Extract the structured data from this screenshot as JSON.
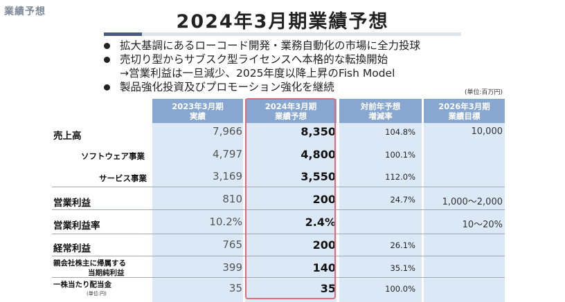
{
  "section_label": "業績予想",
  "title": "2024年3月期業績予想",
  "bullets": [
    "拡大基調にあるローコード開発・業務自動化の市場に全力投球",
    "売切り型からサブスク型ライセンスへ本格的な転換開始",
    "製品強化投資及びプロモーション強化を継続"
  ],
  "bullet_sub": "→営業利益は一旦減少、2025年度以降上昇のFish Model",
  "unit": "(単位:百万円)",
  "headers": {
    "col1": [
      "2023年3月期",
      "実績"
    ],
    "col2": [
      "2024年3月期",
      "業績予想"
    ],
    "col3": [
      "対前年予想",
      "増減率"
    ],
    "col4": [
      "2026年3月期",
      "業績目標"
    ]
  },
  "rows": {
    "sales": {
      "label": "売上高",
      "actual": "7,966",
      "forecast": "8,350",
      "rate": "104.8%",
      "target": "10,000"
    },
    "software": {
      "label": "ソフトウェア事業",
      "actual": "4,797",
      "forecast": "4,800",
      "rate": "100.1%",
      "target": ""
    },
    "service": {
      "label": "サービス事業",
      "actual": "3,169",
      "forecast": "3,550",
      "rate": "112.0%",
      "target": ""
    },
    "op_income": {
      "label": "営業利益",
      "actual": "810",
      "forecast": "200",
      "rate": "24.7%",
      "target": "1,000～2,000"
    },
    "op_margin": {
      "label": "営業利益率",
      "actual": "10.2%",
      "forecast": "2.4%",
      "rate": "",
      "target": "10～20%"
    },
    "ordinary": {
      "label": "経常利益",
      "actual": "765",
      "forecast": "200",
      "rate": "26.1%",
      "target": ""
    },
    "net_income": {
      "label_line1": "親会社株主に帰属する",
      "label_line2": "当期純利益",
      "actual": "399",
      "forecast": "140",
      "rate": "35.1%",
      "target": ""
    },
    "dividend": {
      "label": "一株当たり配当金",
      "note": "(単位:円)",
      "actual": "35",
      "forecast": "35",
      "rate": "100.0%",
      "target": ""
    }
  }
}
